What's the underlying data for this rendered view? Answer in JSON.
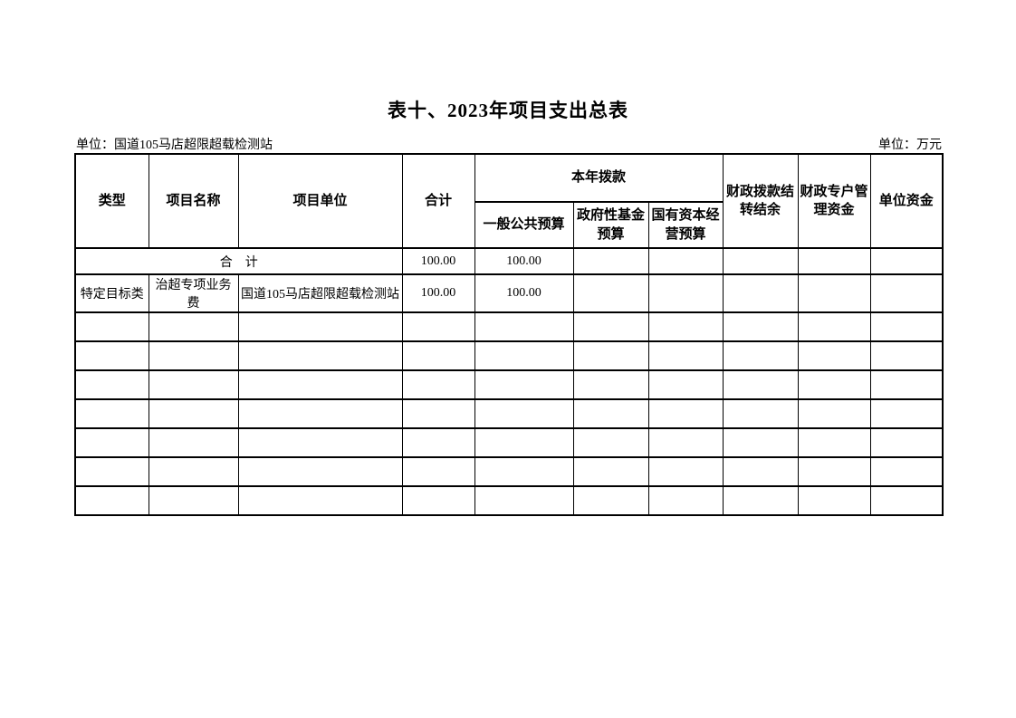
{
  "page": {
    "title": "表十、2023年项目支出总表",
    "unit_left": "单位：国道105马店超限超载检测站",
    "unit_right": "单位：万元"
  },
  "table": {
    "column_count": 10,
    "empty_row_count": 7,
    "header": {
      "col_type": "类型",
      "col_project_name": "项目名称",
      "col_project_unit": "项目单位",
      "col_total": "合计",
      "col_current_year_appropriation": "本年拨款",
      "col_general_public_budget": "一般公共预算",
      "col_govt_fund_budget": "政府性基金\n预算",
      "col_state_capital_budget": "国有资本经\n营预算",
      "col_fiscal_carryover": "财政拨款结\n转结余",
      "col_fiscal_special_account": "财政专户管\n理资金",
      "col_unit_funds": "单位资金"
    },
    "total_row": {
      "label": "合　计",
      "total": "100.00",
      "general_public_budget": "100.00"
    },
    "rows": [
      {
        "type": "特定目标类",
        "project_name": "治超专项业务费",
        "project_unit": "国道105马店超限超载检测站",
        "total": "100.00",
        "general_public_budget": "100.00"
      }
    ]
  }
}
